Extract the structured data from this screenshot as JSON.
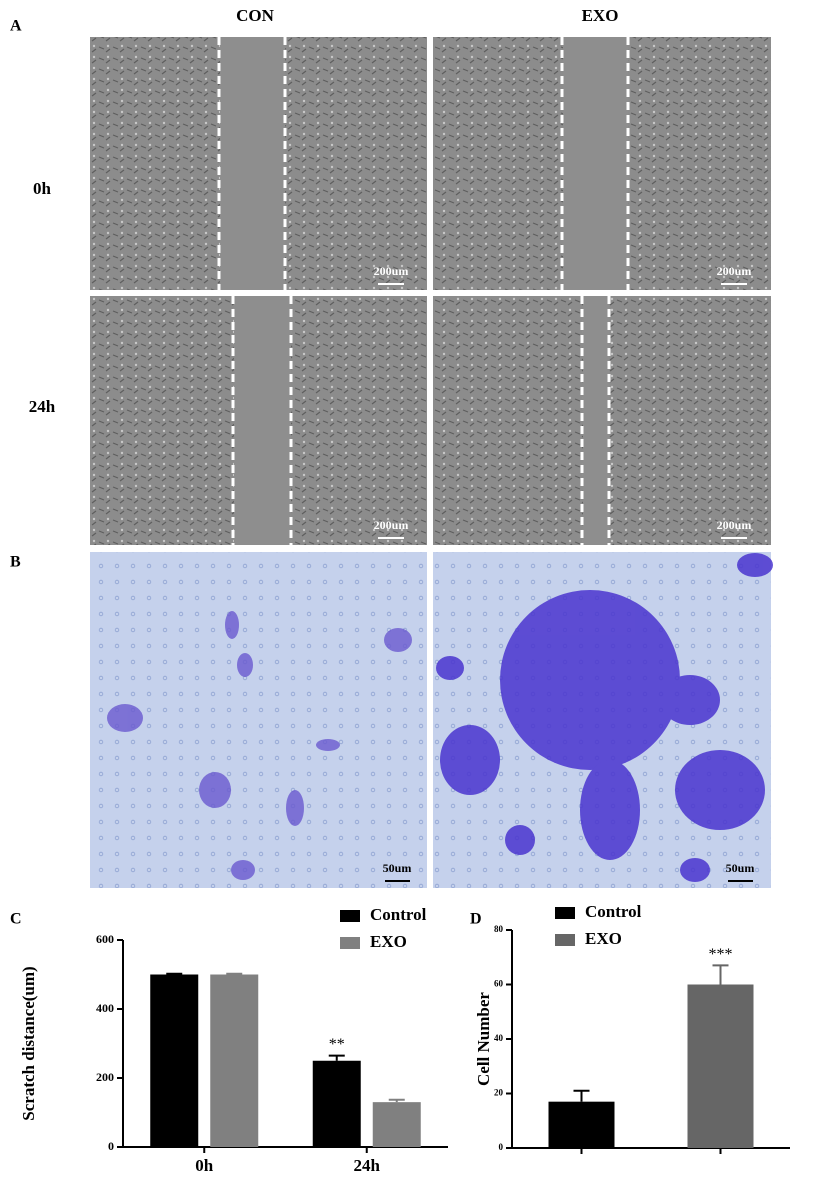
{
  "figure": {
    "panel_labels": [
      "A",
      "B",
      "C",
      "D"
    ],
    "column_headers": [
      "CON",
      "EXO"
    ],
    "row_labels": [
      "0h",
      "24h"
    ],
    "scale_bars": {
      "scratch": "200um",
      "transwell": "50um"
    }
  },
  "chart_data": [
    {
      "type": "bar",
      "ylabel": "Scratch distance(um)",
      "categories": [
        "0h",
        "24h"
      ],
      "series": [
        {
          "name": "Control",
          "color": "#000000",
          "values": [
            500,
            250
          ],
          "errors": [
            2,
            15
          ]
        },
        {
          "name": "EXO",
          "color": "#808080",
          "values": [
            500,
            130
          ],
          "errors": [
            2,
            7
          ]
        }
      ],
      "ylim": [
        0,
        600
      ],
      "yticks": [
        0,
        200,
        400,
        600
      ],
      "annotations": [
        {
          "text": "**",
          "category": "24h",
          "series": "Control"
        }
      ]
    },
    {
      "type": "bar",
      "ylabel": "Cell Number",
      "categories": [
        null,
        null
      ],
      "series": [
        {
          "name": "Control",
          "color": "#000000",
          "values": [
            17,
            null
          ],
          "errors": [
            4,
            null
          ]
        },
        {
          "name": "EXO",
          "color": "#666666",
          "values": [
            null,
            60
          ],
          "errors": [
            null,
            7
          ]
        }
      ],
      "ylim": [
        0,
        80
      ],
      "yticks": [
        0,
        20,
        40,
        60,
        80
      ],
      "annotations": [
        {
          "text": "***",
          "series": "EXO"
        }
      ]
    }
  ]
}
